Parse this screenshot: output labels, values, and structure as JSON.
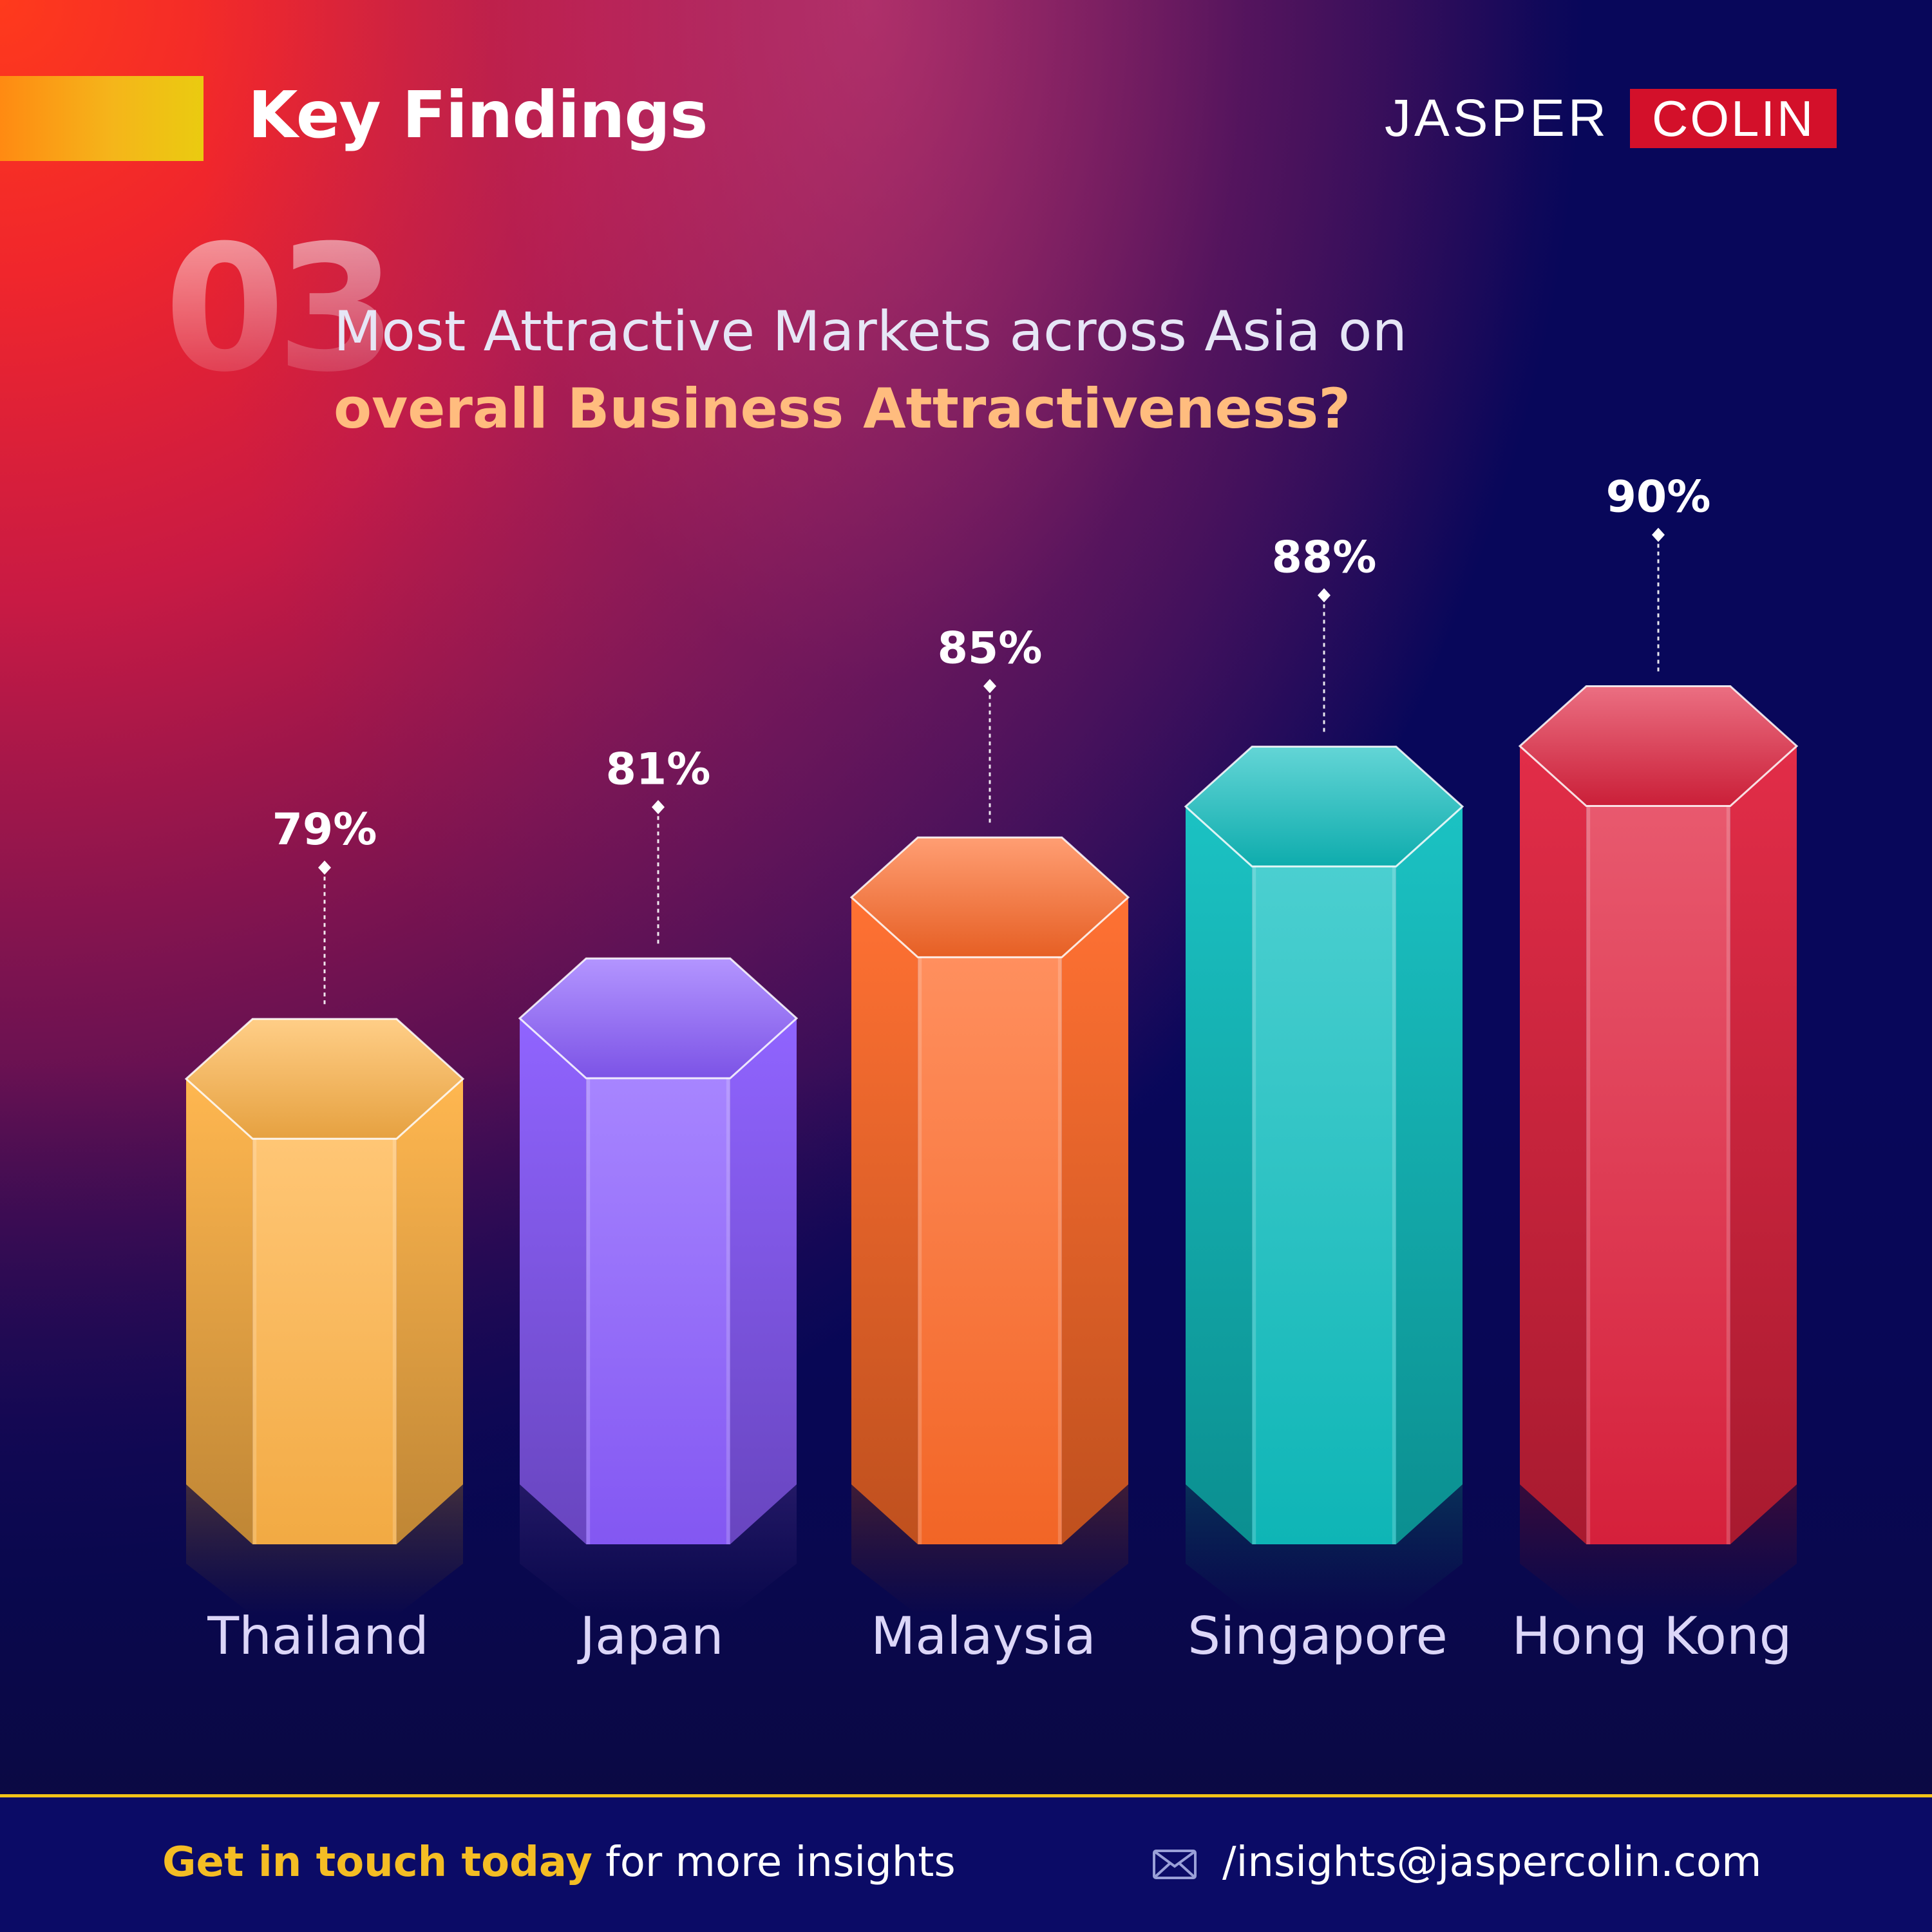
{
  "header": {
    "title": "Key Findings",
    "logo_left": "JASPER",
    "logo_right": "COLIN"
  },
  "question": {
    "number": "03",
    "line1": "Most Attractive Markets across Asia on",
    "line2": "overall Business Attractiveness?"
  },
  "chart_data": {
    "type": "bar",
    "categories": [
      "Thailand",
      "Japan",
      "Malaysia",
      "Singapore",
      "Hong Kong"
    ],
    "values": [
      79,
      81,
      85,
      88,
      90
    ],
    "value_labels": [
      "79%",
      "81%",
      "85%",
      "88%",
      "90%"
    ],
    "unit": "%",
    "style": "3d-hexagonal-prism",
    "colors": [
      "#ffb347",
      "#8a5cff",
      "#ff6a28",
      "#0fbfc0",
      "#e0223e"
    ],
    "grid": false,
    "legend": "none"
  },
  "footer": {
    "cta_highlight": "Get in touch today",
    "cta_rest": " for more insights",
    "email": "/insights@jaspercolin.com",
    "email_icon": "envelope-icon",
    "accent_color": "#f1c318"
  }
}
